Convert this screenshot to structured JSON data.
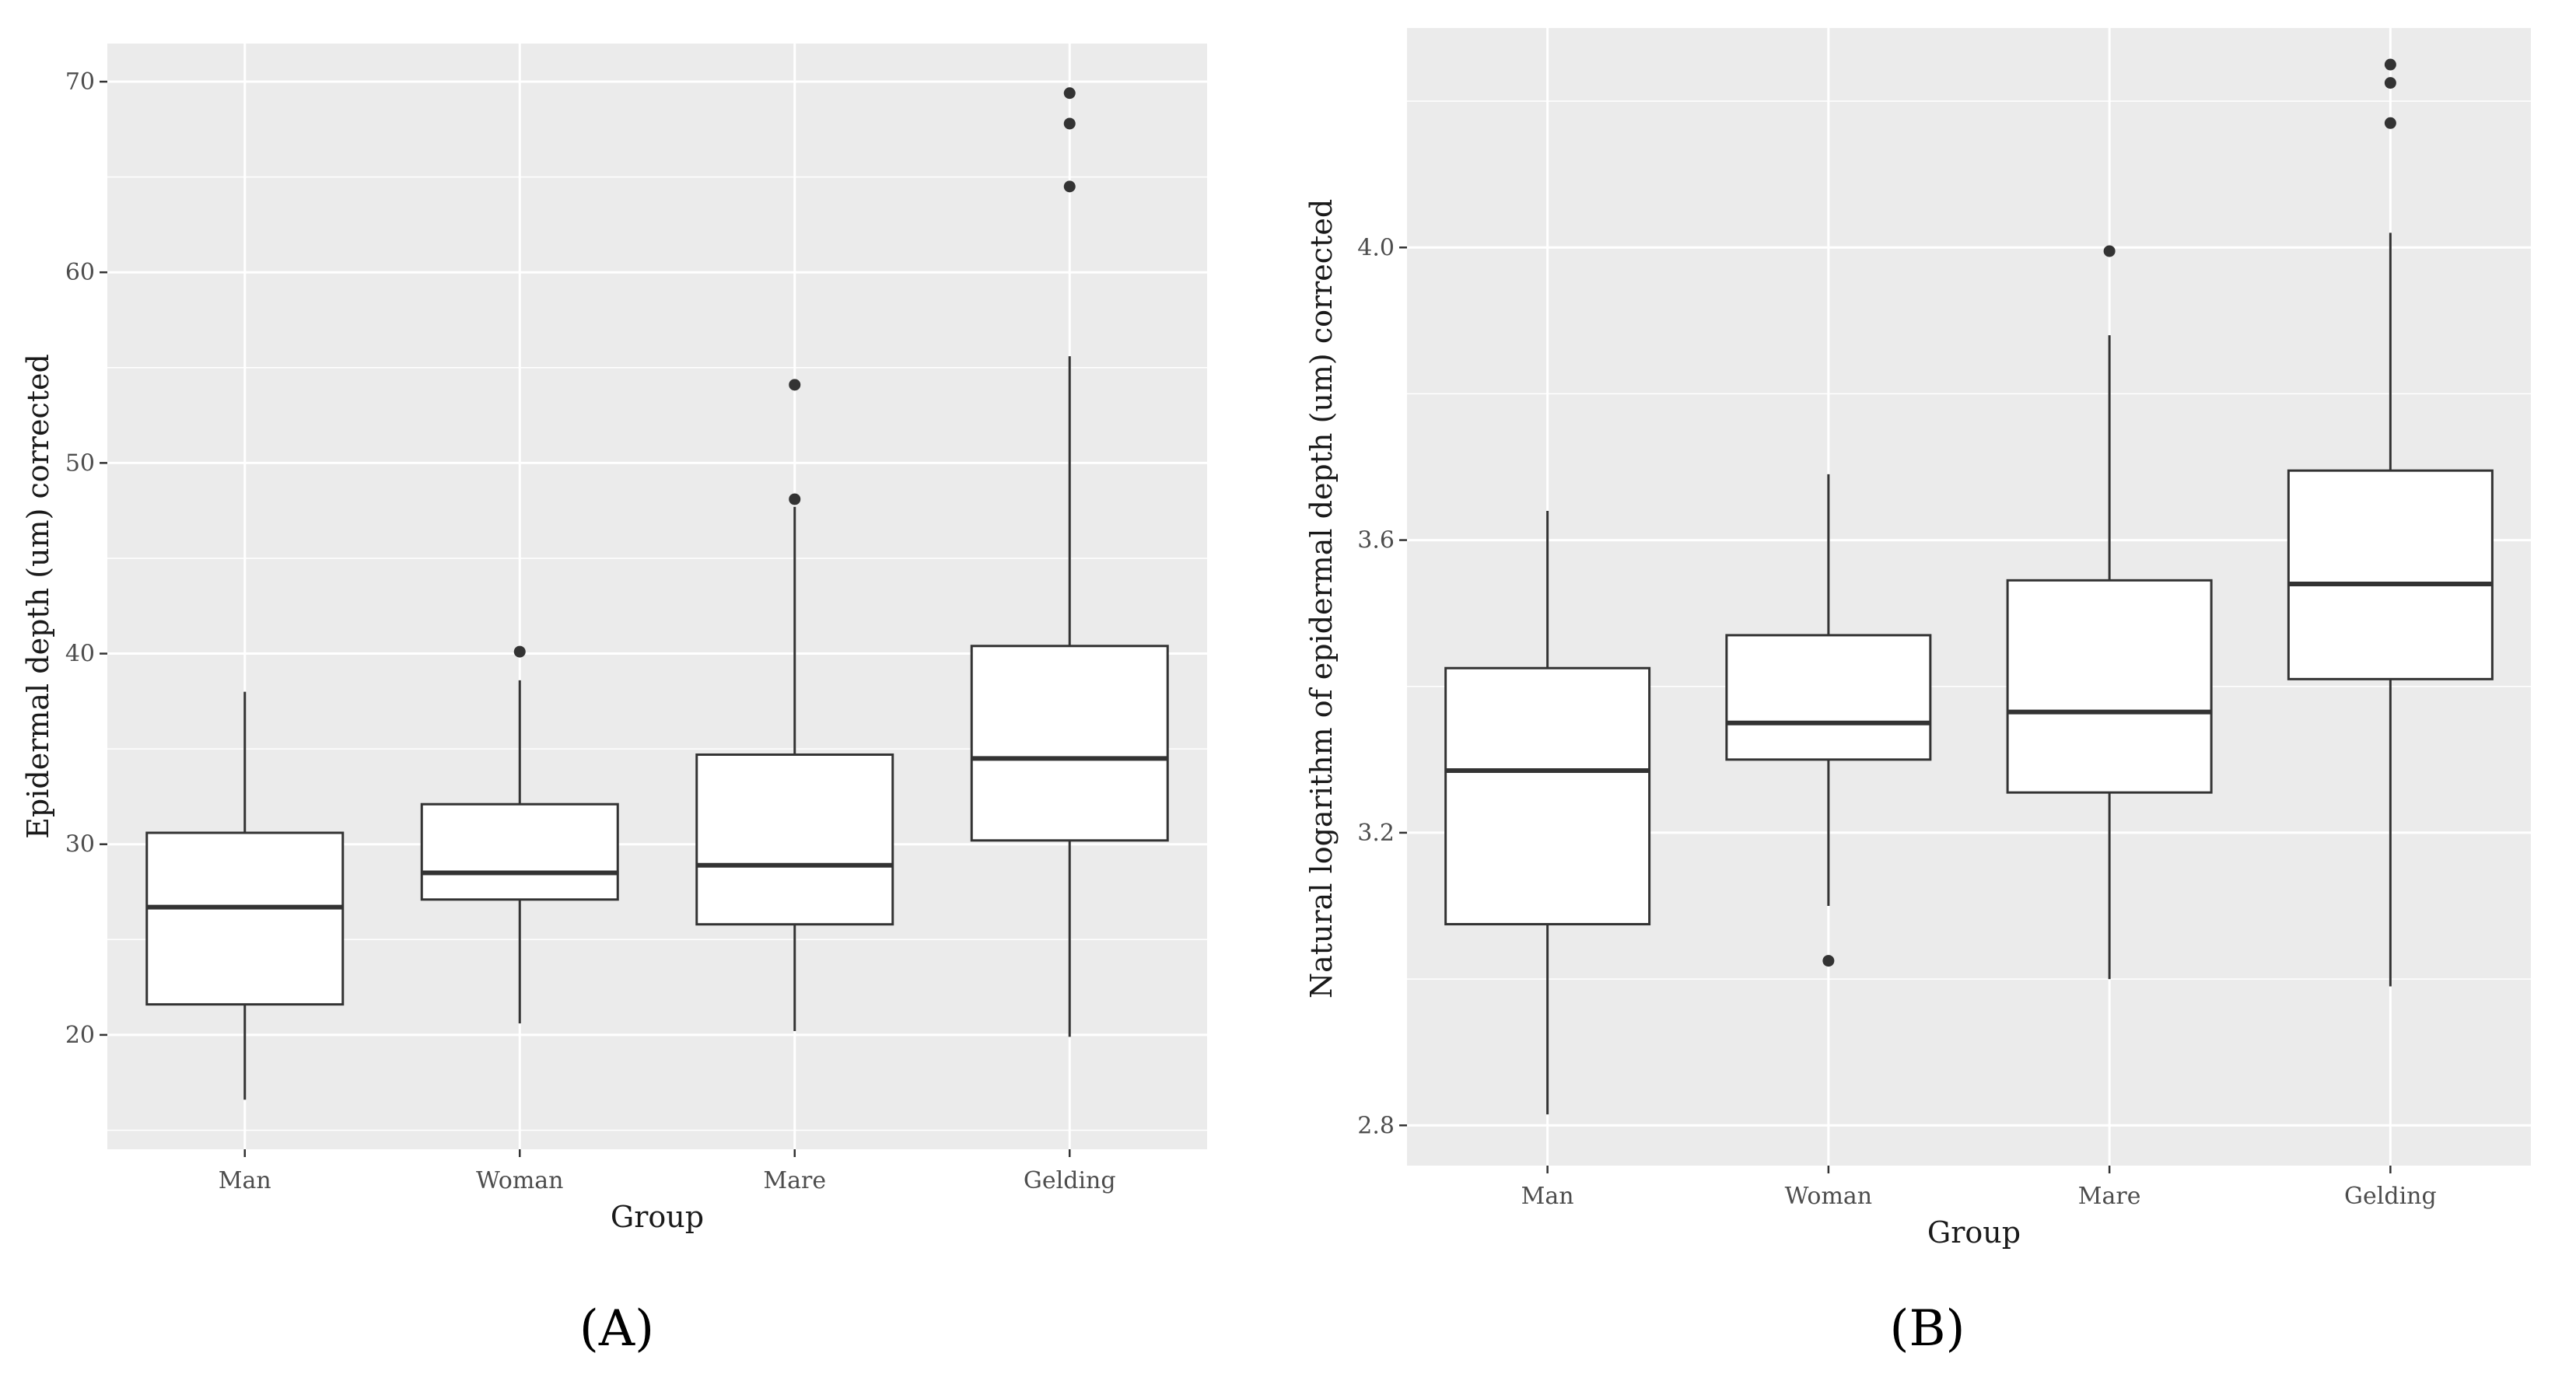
{
  "chart_data": [
    {
      "type": "boxplot",
      "panel_label": "(A)",
      "xlabel": "Group",
      "ylabel": "Epidermal depth (um) corrected",
      "categories": [
        "Man",
        "Woman",
        "Mare",
        "Gelding"
      ],
      "ylim": [
        14,
        72
      ],
      "yticks": [
        20,
        30,
        40,
        50,
        60,
        70
      ],
      "ytick_labels": [
        "20",
        "30",
        "40",
        "50",
        "60",
        "70"
      ],
      "grid": true,
      "boxes": [
        {
          "group": "Man",
          "whisker_low": 16.6,
          "q1": 21.6,
          "median": 26.7,
          "q3": 30.6,
          "whisker_high": 38.0,
          "outliers": []
        },
        {
          "group": "Woman",
          "whisker_low": 20.6,
          "q1": 27.1,
          "median": 28.5,
          "q3": 32.1,
          "whisker_high": 38.6,
          "outliers": [
            40.1
          ]
        },
        {
          "group": "Mare",
          "whisker_low": 20.2,
          "q1": 25.8,
          "median": 28.9,
          "q3": 34.7,
          "whisker_high": 47.7,
          "outliers": [
            48.1,
            54.1
          ]
        },
        {
          "group": "Gelding",
          "whisker_low": 19.9,
          "q1": 30.2,
          "median": 34.5,
          "q3": 40.4,
          "whisker_high": 55.6,
          "outliers": [
            64.5,
            67.8,
            69.4
          ]
        }
      ]
    },
    {
      "type": "boxplot",
      "panel_label": "(B)",
      "xlabel": "Group",
      "ylabel": "Natural logarithm of epidermal depth (um) corrected",
      "categories": [
        "Man",
        "Woman",
        "Mare",
        "Gelding"
      ],
      "ylim": [
        2.745,
        4.3
      ],
      "yticks": [
        2.8,
        3.2,
        3.6,
        4.0
      ],
      "ytick_labels": [
        "2.8",
        "3.2",
        "3.6",
        "4.0"
      ],
      "grid": true,
      "boxes": [
        {
          "group": "Man",
          "whisker_low": 2.815,
          "q1": 3.075,
          "median": 3.285,
          "q3": 3.425,
          "whisker_high": 3.64,
          "outliers": []
        },
        {
          "group": "Woman",
          "whisker_low": 3.1,
          "q1": 3.3,
          "median": 3.35,
          "q3": 3.47,
          "whisker_high": 3.69,
          "outliers": [
            3.025
          ]
        },
        {
          "group": "Mare",
          "whisker_low": 3.0,
          "q1": 3.255,
          "median": 3.365,
          "q3": 3.545,
          "whisker_high": 3.88,
          "outliers": [
            3.995
          ]
        },
        {
          "group": "Gelding",
          "whisker_low": 2.99,
          "q1": 3.41,
          "median": 3.54,
          "q3": 3.695,
          "whisker_high": 4.02,
          "outliers": [
            4.17,
            4.225,
            4.25
          ]
        }
      ]
    }
  ]
}
